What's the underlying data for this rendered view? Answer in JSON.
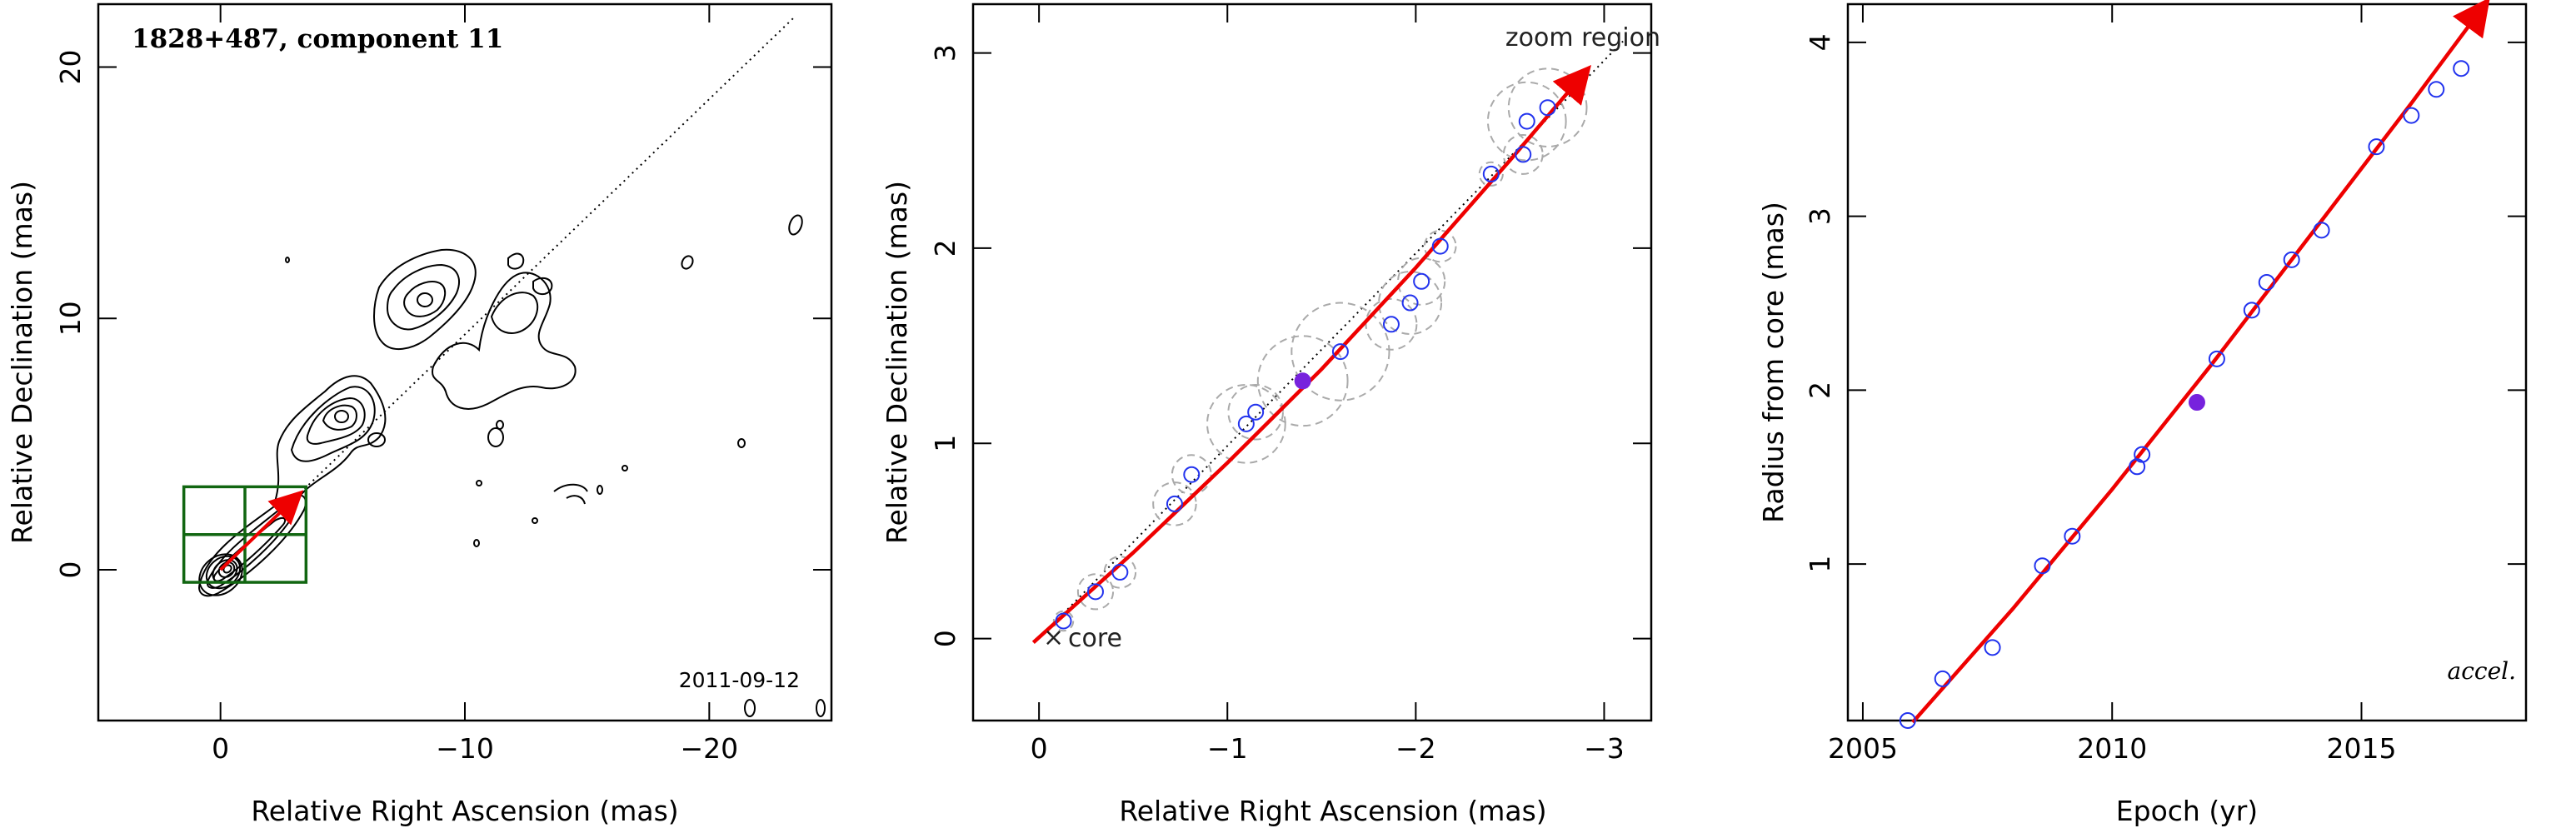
{
  "colors": {
    "fit": "#ee0000",
    "point": "#2233ee",
    "filled_point": "#7722dd",
    "box": "#116611",
    "ellipse": "#aaaaaa",
    "contour": "#000000"
  },
  "chart_data": [
    {
      "type": "contour",
      "title": "1828+487, component 11",
      "date_label": "2011-09-12",
      "xlabel": "Relative Right Ascension (mas)",
      "ylabel": "Relative Declination (mas)",
      "xlim": [
        5,
        -25
      ],
      "ylim": [
        -6,
        22.5
      ],
      "xticks": [
        0,
        -10,
        -20
      ],
      "yticks": [
        0,
        10,
        20
      ],
      "jet_axis": {
        "x": [
          0,
          -23.5
        ],
        "y": [
          0,
          22
        ]
      },
      "zoom_box": {
        "x": [
          1.5,
          -3.5
        ],
        "y": [
          -0.5,
          3.3
        ]
      },
      "track": {
        "x": [
          0,
          -3
        ],
        "y": [
          0,
          2.8
        ]
      }
    },
    {
      "type": "scatter",
      "xlabel": "Relative Right Ascension (mas)",
      "ylabel": "Relative Declination (mas)",
      "xlim": [
        0.35,
        -3.25
      ],
      "ylim": [
        -0.42,
        3.25
      ],
      "xticks": [
        0,
        -1,
        -2,
        -3
      ],
      "yticks": [
        0,
        1,
        2,
        3
      ],
      "annotations": {
        "zoom_region": "zoom region",
        "core": "core"
      },
      "points": [
        {
          "x": -0.13,
          "y": 0.09,
          "r": 0.05
        },
        {
          "x": -0.3,
          "y": 0.24,
          "r": 0.09
        },
        {
          "x": -0.43,
          "y": 0.34,
          "r": 0.08
        },
        {
          "x": -0.72,
          "y": 0.69,
          "r": 0.11
        },
        {
          "x": -0.81,
          "y": 0.84,
          "r": 0.1
        },
        {
          "x": -1.1,
          "y": 1.1,
          "r": 0.2
        },
        {
          "x": -1.15,
          "y": 1.16,
          "r": 0.14
        },
        {
          "x": -1.6,
          "y": 1.47,
          "r": 0.25
        },
        {
          "x": -1.87,
          "y": 1.61,
          "r": 0.13
        },
        {
          "x": -1.97,
          "y": 1.72,
          "r": 0.16
        },
        {
          "x": -2.03,
          "y": 1.83,
          "r": 0.12
        },
        {
          "x": -2.13,
          "y": 2.01,
          "r": 0.08
        },
        {
          "x": -2.4,
          "y": 2.38,
          "r": 0.06
        },
        {
          "x": -2.57,
          "y": 2.48,
          "r": 0.1
        },
        {
          "x": -2.59,
          "y": 2.65,
          "r": 0.2
        },
        {
          "x": -2.7,
          "y": 2.72,
          "r": 0.2
        }
      ],
      "filled_point": {
        "x": -1.4,
        "y": 1.32,
        "r": 0.23
      },
      "fit": {
        "x": [
          0.03,
          -0.5,
          -1.0,
          -1.5,
          -2.0,
          -2.5,
          -2.88
        ],
        "y": [
          -0.02,
          0.44,
          0.9,
          1.38,
          1.9,
          2.45,
          2.88
        ]
      },
      "jet_axis": {
        "x": [
          0,
          -3.1
        ],
        "y": [
          0,
          3.06
        ]
      }
    },
    {
      "type": "line",
      "xlabel": "Epoch (yr)",
      "ylabel": "Radius from core (mas)",
      "xlim": [
        2004.7,
        2018.3
      ],
      "ylim": [
        0.1,
        4.22
      ],
      "xticks": [
        2005,
        2010,
        2015
      ],
      "yticks": [
        1,
        2,
        3,
        4
      ],
      "annotation": "accel.",
      "points": [
        {
          "x": 2005.9,
          "y": 0.1
        },
        {
          "x": 2006.6,
          "y": 0.34
        },
        {
          "x": 2007.6,
          "y": 0.52
        },
        {
          "x": 2008.6,
          "y": 0.99
        },
        {
          "x": 2009.2,
          "y": 1.16
        },
        {
          "x": 2010.5,
          "y": 1.56
        },
        {
          "x": 2010.6,
          "y": 1.63
        },
        {
          "x": 2012.1,
          "y": 2.18
        },
        {
          "x": 2012.8,
          "y": 2.46
        },
        {
          "x": 2013.1,
          "y": 2.62
        },
        {
          "x": 2013.6,
          "y": 2.75
        },
        {
          "x": 2014.2,
          "y": 2.92
        },
        {
          "x": 2015.3,
          "y": 3.4
        },
        {
          "x": 2016.0,
          "y": 3.58
        },
        {
          "x": 2016.5,
          "y": 3.73
        },
        {
          "x": 2017.0,
          "y": 3.85
        }
      ],
      "filled_point": {
        "x": 2011.7,
        "y": 1.93
      },
      "fit": {
        "x": [
          2006.0,
          2008.0,
          2010.0,
          2012.0,
          2014.0,
          2016.0,
          2017.4
        ],
        "y": [
          0.09,
          0.74,
          1.43,
          2.15,
          2.9,
          3.65,
          4.19
        ]
      }
    }
  ]
}
